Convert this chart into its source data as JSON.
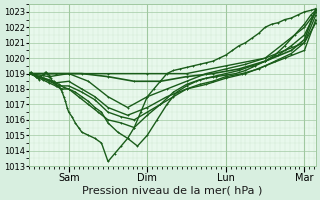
{
  "title": "Pression niveau de la mer( hPa )",
  "bg_color": "#d8efe0",
  "plot_bg_color": "#e8f8ec",
  "grid_color": "#a0c8a0",
  "grid_minor_color": "#c0ddc0",
  "line_color": "#1a5c1a",
  "ylim": [
    1013,
    1023.5
  ],
  "yticks": [
    1013,
    1014,
    1015,
    1016,
    1017,
    1018,
    1019,
    1020,
    1021,
    1022,
    1023
  ],
  "xlabel": "Pression niveau de la mer( hPa )",
  "xlabel_fontsize": 8,
  "ytick_fontsize": 6,
  "xtick_fontsize": 7,
  "day_labels": [
    "Sam",
    "Dim",
    "Lun",
    "Mar"
  ],
  "day_positions": [
    24,
    72,
    120,
    168
  ],
  "vline_positions": [
    24,
    72,
    120,
    168
  ],
  "xlim": [
    0,
    175
  ],
  "total_hours": 175,
  "series": [
    {
      "x": [
        0,
        1,
        2,
        3,
        4,
        5,
        6,
        7,
        8,
        9,
        10,
        11,
        12,
        13,
        14,
        15,
        16,
        17,
        18,
        19,
        20,
        21,
        22,
        23,
        24,
        26,
        28,
        30,
        32,
        36,
        40,
        44,
        48,
        52,
        56,
        60,
        64,
        68,
        72,
        76,
        80,
        84,
        88,
        92,
        96,
        100,
        104,
        108,
        112,
        116,
        120,
        124,
        128,
        132,
        136,
        140,
        144,
        148,
        152,
        156,
        160,
        164,
        168,
        172,
        175
      ],
      "y": [
        1019.0,
        1019.1,
        1019.0,
        1018.9,
        1018.8,
        1018.7,
        1018.6,
        1018.8,
        1018.9,
        1019.0,
        1019.1,
        1019.0,
        1018.9,
        1018.7,
        1018.5,
        1018.4,
        1018.3,
        1018.2,
        1018.1,
        1018.0,
        1017.8,
        1017.5,
        1017.2,
        1016.8,
        1016.5,
        1016.2,
        1015.8,
        1015.5,
        1015.2,
        1015.0,
        1014.8,
        1014.5,
        1013.3,
        1013.8,
        1014.3,
        1014.8,
        1015.5,
        1016.5,
        1017.5,
        1018.0,
        1018.5,
        1019.0,
        1019.2,
        1019.3,
        1019.4,
        1019.5,
        1019.6,
        1019.7,
        1019.8,
        1020.0,
        1020.2,
        1020.5,
        1020.8,
        1021.0,
        1021.3,
        1021.6,
        1022.0,
        1022.2,
        1022.3,
        1022.5,
        1022.6,
        1022.8,
        1023.0,
        1023.1,
        1023.2
      ],
      "lw": 1.0
    },
    {
      "x": [
        0,
        3,
        6,
        9,
        12,
        15,
        18,
        21,
        24,
        28,
        32,
        36,
        40,
        44,
        48,
        54,
        60,
        66,
        72,
        78,
        84,
        90,
        96,
        102,
        108,
        114,
        120,
        126,
        132,
        138,
        144,
        150,
        156,
        162,
        168,
        172,
        175
      ],
      "y": [
        1019.0,
        1018.9,
        1018.8,
        1018.7,
        1018.6,
        1018.5,
        1018.3,
        1018.1,
        1018.0,
        1017.8,
        1017.5,
        1017.2,
        1016.8,
        1016.5,
        1015.8,
        1015.2,
        1014.8,
        1014.3,
        1015.0,
        1016.0,
        1017.0,
        1017.8,
        1018.2,
        1018.5,
        1018.7,
        1018.8,
        1018.9,
        1019.0,
        1019.2,
        1019.5,
        1019.8,
        1020.2,
        1020.8,
        1021.5,
        1022.2,
        1022.8,
        1023.1
      ],
      "lw": 1.0
    },
    {
      "x": [
        0,
        4,
        8,
        12,
        16,
        20,
        24,
        30,
        36,
        42,
        48,
        56,
        64,
        72,
        80,
        88,
        96,
        104,
        112,
        120,
        128,
        136,
        144,
        152,
        160,
        168,
        175
      ],
      "y": [
        1019.0,
        1018.8,
        1018.6,
        1018.4,
        1018.2,
        1018.0,
        1018.0,
        1017.5,
        1017.0,
        1016.5,
        1016.0,
        1015.8,
        1015.5,
        1016.3,
        1017.0,
        1017.8,
        1018.3,
        1018.6,
        1018.8,
        1019.0,
        1019.2,
        1019.5,
        1019.8,
        1020.2,
        1020.8,
        1021.5,
        1023.0
      ],
      "lw": 1.0
    },
    {
      "x": [
        0,
        6,
        12,
        18,
        24,
        32,
        40,
        48,
        56,
        64,
        72,
        80,
        88,
        96,
        104,
        112,
        120,
        130,
        140,
        150,
        160,
        168,
        175
      ],
      "y": [
        1019.0,
        1018.8,
        1018.5,
        1018.2,
        1018.2,
        1017.8,
        1017.3,
        1016.5,
        1016.2,
        1016.0,
        1016.5,
        1017.0,
        1017.5,
        1018.0,
        1018.3,
        1018.5,
        1018.8,
        1019.0,
        1019.3,
        1019.8,
        1020.3,
        1021.0,
        1022.8
      ],
      "lw": 1.0
    },
    {
      "x": [
        0,
        8,
        16,
        24,
        32,
        40,
        48,
        60,
        72,
        84,
        96,
        108,
        120,
        132,
        144,
        156,
        168,
        175
      ],
      "y": [
        1019.0,
        1018.7,
        1018.4,
        1018.5,
        1018.0,
        1017.5,
        1016.8,
        1016.3,
        1016.8,
        1017.5,
        1018.0,
        1018.3,
        1018.7,
        1019.0,
        1019.5,
        1020.0,
        1020.5,
        1022.5
      ],
      "lw": 1.0
    },
    {
      "x": [
        0,
        12,
        24,
        36,
        48,
        60,
        72,
        84,
        96,
        108,
        120,
        132,
        144,
        156,
        168,
        175
      ],
      "y": [
        1019.0,
        1018.8,
        1019.0,
        1018.5,
        1017.5,
        1016.8,
        1017.5,
        1018.0,
        1018.5,
        1019.0,
        1019.3,
        1019.6,
        1020.0,
        1020.5,
        1021.0,
        1022.3
      ],
      "lw": 1.0
    },
    {
      "x": [
        0,
        16,
        32,
        48,
        64,
        80,
        96,
        112,
        128,
        144,
        160,
        168,
        175
      ],
      "y": [
        1019.0,
        1019.0,
        1019.0,
        1018.8,
        1018.5,
        1018.5,
        1018.8,
        1019.0,
        1019.3,
        1019.8,
        1020.5,
        1021.2,
        1023.2
      ],
      "lw": 1.2
    },
    {
      "x": [
        0,
        24,
        48,
        72,
        96,
        120,
        144,
        168,
        175
      ],
      "y": [
        1019.0,
        1019.0,
        1019.0,
        1019.0,
        1019.0,
        1019.5,
        1020.0,
        1022.0,
        1023.0
      ],
      "lw": 1.0
    }
  ],
  "marker": "+",
  "markersize": 2,
  "markeredgewidth": 0.7
}
